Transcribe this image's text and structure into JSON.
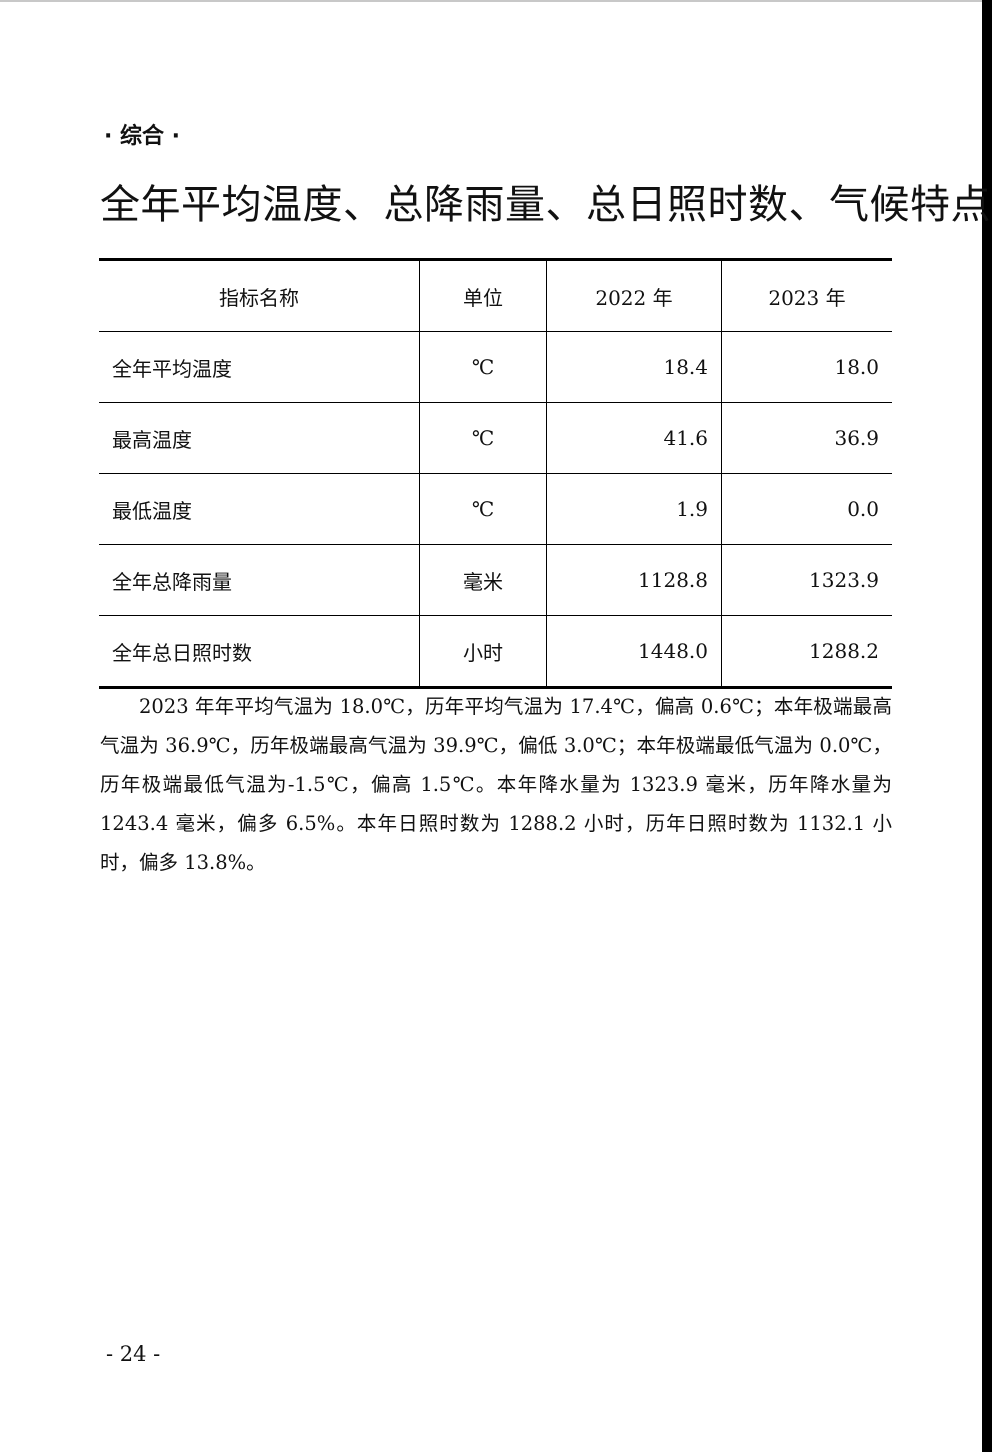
{
  "section_label": "· 综合 ·",
  "title": "全年平均温度、总降雨量、总日照时数、气候特点",
  "table": {
    "headers": [
      "指标名称",
      "单位",
      "2022 年",
      "2023 年"
    ],
    "rows": [
      {
        "name": "全年平均温度",
        "unit": "℃",
        "y2022": "18.4",
        "y2023": "18.0"
      },
      {
        "name": "最高温度",
        "unit": "℃",
        "y2022": "41.6",
        "y2023": "36.9"
      },
      {
        "name": "最低温度",
        "unit": "℃",
        "y2022": "1.9",
        "y2023": "0.0"
      },
      {
        "name": "全年总降雨量",
        "unit": "毫米",
        "y2022": "1128.8",
        "y2023": "1323.9"
      },
      {
        "name": "全年总日照时数",
        "unit": "小时",
        "y2022": "1448.0",
        "y2023": "1288.2"
      }
    ]
  },
  "paragraph": "2023 年年平均气温为 18.0℃，历年平均气温为 17.4℃，偏高 0.6℃；本年极端最高气温为 36.9℃，历年极端最高气温为 39.9℃，偏低 3.0℃；本年极端最低气温为 0.0℃，历年极端最低气温为-1.5℃，偏高 1.5℃。本年降水量为 1323.9 毫米，历年降水量为 1243.4 毫米，偏多 6.5%。本年日照时数为 1288.2 小时，历年日照时数为 1132.1 小时，偏多 13.8%。",
  "page_number": "- 24 -"
}
